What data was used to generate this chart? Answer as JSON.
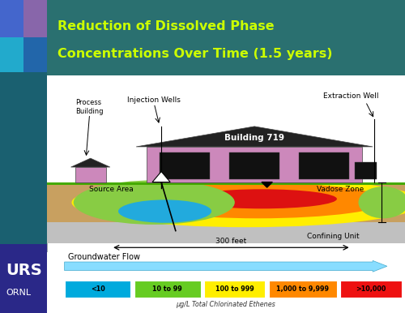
{
  "title_line1": "Reduction of Dissolved Phase",
  "title_line2": "Concentrations Over Time (1.5 years)",
  "title_color": "#ccff00",
  "title_bg_color": "#2a7070",
  "bg_outer_color": "#1a4a6a",
  "legend_labels": [
    "<10",
    "10 to 99",
    "100 to 999",
    "1,000 to 9,999",
    ">10,000"
  ],
  "legend_colors": [
    "#00aadd",
    "#66cc22",
    "#ffee00",
    "#ff8800",
    "#ee1111"
  ],
  "legend_subtitle": "μg/L Total Chlorinated Ethenes",
  "logo_text": "URS",
  "logo_sub": "ORNL",
  "groundwater_arrow_label": "Groundwater Flow",
  "scale_label": "300 feet",
  "labels": {
    "injection_wells": "Injection Wells",
    "process_building": "Process\nBuilding",
    "building_719": "Building 719",
    "extraction_well": "Extraction Well",
    "source_area": "Source Area",
    "vadose_zone": "Vadose Zone",
    "confining_unit": "Confining Unit"
  },
  "left_strip_colors": [
    "#4466bb",
    "#22aacc",
    "#116688",
    "#116688",
    "#2a2888"
  ],
  "title_rect_color": "#2a7070",
  "diagram_bg": "#ffffff",
  "vadose_tan": "#c8a060",
  "confining_gray": "#b8b8b8",
  "ground_green": "#44aa00",
  "building_pink": "#cc88bb",
  "roof_dark": "#303030",
  "zone_yellow": "#ffee00",
  "zone_orange": "#ff8800",
  "zone_red": "#dd1111",
  "zone_green": "#88cc44",
  "zone_blue": "#22aadd"
}
